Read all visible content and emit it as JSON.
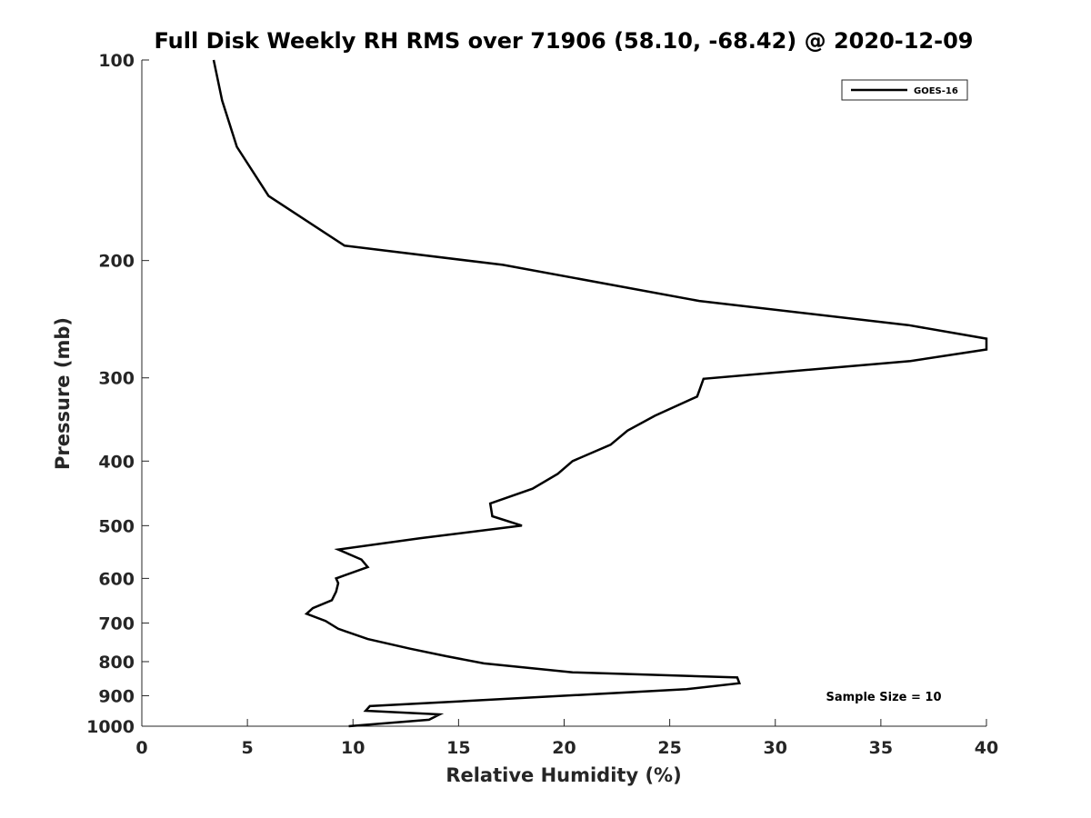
{
  "chart_data": {
    "type": "line",
    "title": "Full Disk Weekly RH RMS over 71906 (58.10, -68.42) @ 2020-12-09",
    "xlabel": "Relative Humidity (%)",
    "ylabel": "Pressure (mb)",
    "xlim": [
      0,
      40
    ],
    "ylim": [
      100,
      1000
    ],
    "yscale": "log",
    "y_reversed": true,
    "x_ticks": [
      0,
      5,
      10,
      15,
      20,
      25,
      30,
      35,
      40
    ],
    "y_ticks": [
      100,
      200,
      300,
      400,
      500,
      600,
      700,
      800,
      900,
      1000
    ],
    "grid": false,
    "legend_position": "top-right",
    "annotation": "Sample Size = 10",
    "series": [
      {
        "name": "GOES-16",
        "color": "#000000",
        "points": [
          [
            3.4,
            100
          ],
          [
            3.8,
            115
          ],
          [
            4.5,
            135
          ],
          [
            6.0,
            160
          ],
          [
            9.6,
            190
          ],
          [
            17.1,
            203
          ],
          [
            26.4,
            230
          ],
          [
            36.3,
            250
          ],
          [
            40.0,
            262
          ],
          [
            40.0,
            272
          ],
          [
            36.4,
            283
          ],
          [
            26.6,
            301
          ],
          [
            26.3,
            320
          ],
          [
            24.3,
            342
          ],
          [
            23.0,
            360
          ],
          [
            22.2,
            378
          ],
          [
            20.4,
            400
          ],
          [
            19.7,
            418
          ],
          [
            18.5,
            440
          ],
          [
            16.5,
            463
          ],
          [
            16.6,
            484
          ],
          [
            18.0,
            500
          ],
          [
            13.2,
            522
          ],
          [
            9.3,
            543
          ],
          [
            10.4,
            562
          ],
          [
            10.7,
            577
          ],
          [
            9.2,
            600
          ],
          [
            9.3,
            610
          ],
          [
            9.2,
            628
          ],
          [
            9.0,
            647
          ],
          [
            8.1,
            665
          ],
          [
            7.8,
            678
          ],
          [
            8.7,
            695
          ],
          [
            9.3,
            714
          ],
          [
            10.7,
            740
          ],
          [
            12.7,
            765
          ],
          [
            14.4,
            785
          ],
          [
            16.2,
            805
          ],
          [
            20.4,
            830
          ],
          [
            28.2,
            845
          ],
          [
            28.3,
            862
          ],
          [
            25.8,
            880
          ],
          [
            10.8,
            933
          ],
          [
            10.6,
            948
          ],
          [
            14.1,
            960
          ],
          [
            13.6,
            978
          ],
          [
            9.8,
            1000
          ]
        ]
      }
    ]
  }
}
